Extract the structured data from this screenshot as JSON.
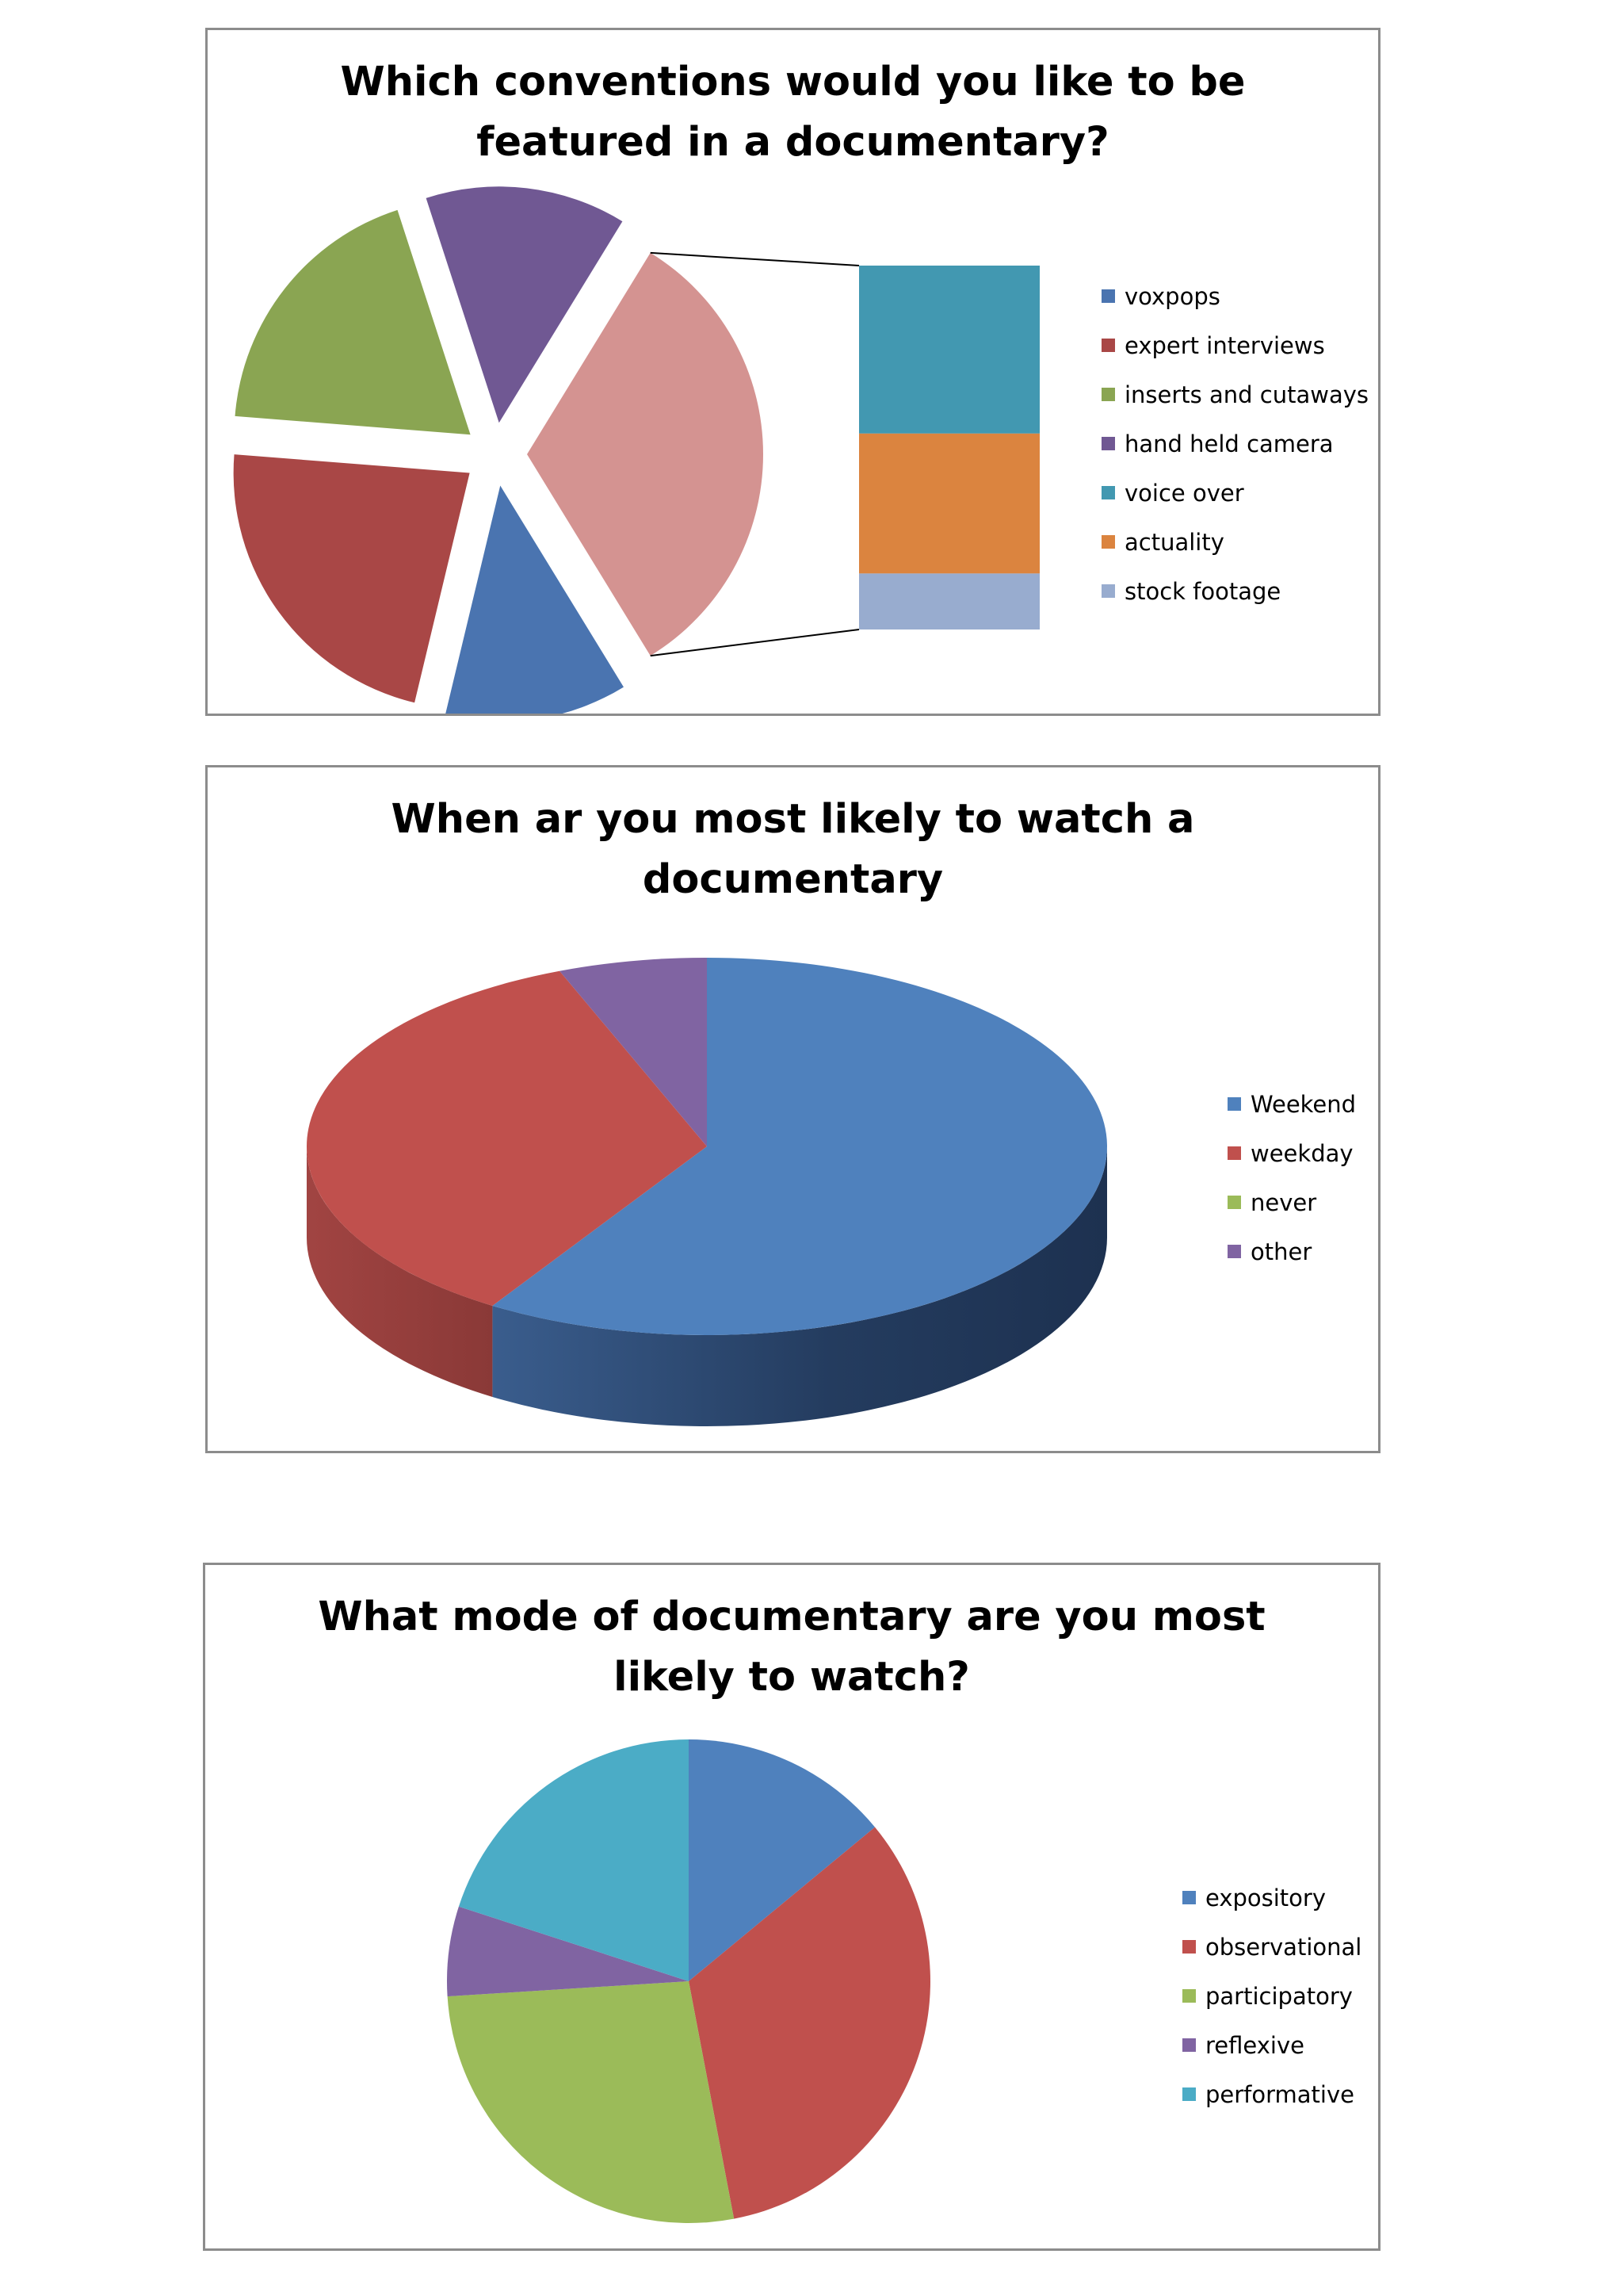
{
  "chart_data": [
    {
      "type": "pie",
      "variant": "bar-of-pie, exploded",
      "title": "Which conventions would you like to be featured in a documentary?",
      "title_lines": [
        "Which conventions would you like to be",
        "featured in a documentary?"
      ],
      "categories": [
        "voxpops",
        "expert interviews",
        "inserts and cutaways",
        "hand held camera",
        "voice over",
        "actuality",
        "stock footage"
      ],
      "values": [
        10,
        18,
        15,
        11,
        12,
        10,
        4
      ],
      "colors": [
        "#4a74b0",
        "#a94746",
        "#8aa552",
        "#705893",
        "#4298b1",
        "#db843f",
        "#98accf"
      ],
      "other_slice_color": "#d49391",
      "legend_position": "right"
    },
    {
      "type": "pie",
      "variant": "3d",
      "title": "When ar you most likely to watch a documentary",
      "title_lines": [
        "When ar you most likely to watch a",
        "documentary"
      ],
      "categories": [
        "Weekend",
        "weekday",
        "never",
        "other"
      ],
      "values": [
        59,
        35,
        0,
        6
      ],
      "colors": [
        "#4f81bd",
        "#c0504d",
        "#9bbb59",
        "#8064a2"
      ],
      "legend_position": "right"
    },
    {
      "type": "pie",
      "title": "What mode of documentary are you most likely to watch?",
      "title_lines": [
        "What mode of documentary are you most",
        "likely to watch?"
      ],
      "categories": [
        "expository",
        "observational",
        "participatory",
        "reflexive",
        "performative"
      ],
      "values": [
        14,
        33,
        27,
        6,
        20
      ],
      "colors": [
        "#4f81bd",
        "#c0504d",
        "#9bbb59",
        "#8064a2",
        "#4bacc6"
      ],
      "legend_position": "right"
    }
  ]
}
